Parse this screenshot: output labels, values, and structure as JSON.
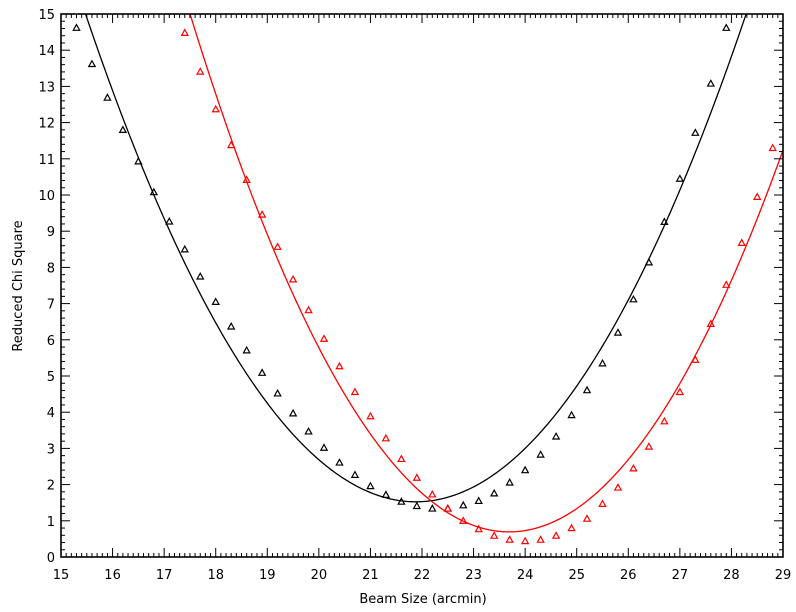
{
  "chart_data": {
    "type": "line",
    "title": "",
    "xlabel": "Beam Size (arcmin)",
    "ylabel": "Reduced Chi Square",
    "xlim": [
      15,
      29
    ],
    "ylim": [
      0,
      15
    ],
    "xticks": [
      "15",
      "16",
      "17",
      "18",
      "19",
      "20",
      "21",
      "22",
      "23",
      "24",
      "25",
      "26",
      "27",
      "28",
      "29"
    ],
    "yticks": [
      "0",
      "1",
      "2",
      "3",
      "4",
      "5",
      "6",
      "7",
      "8",
      "9",
      "10",
      "11",
      "12",
      "13",
      "14",
      "15"
    ],
    "grid": false,
    "legend": "none",
    "series": [
      {
        "color": "#000000",
        "marker": "triangle",
        "x": [
          15.3,
          15.6,
          15.9,
          16.2,
          16.5,
          16.8,
          17.1,
          17.4,
          17.7,
          18.0,
          18.3,
          18.6,
          18.9,
          19.2,
          19.5,
          19.8,
          20.1,
          20.4,
          20.7,
          21.0,
          21.3,
          21.6,
          21.9,
          22.2,
          22.5,
          22.8,
          23.1,
          23.4,
          23.7,
          24.0,
          24.3,
          24.6,
          24.9,
          25.2,
          25.5,
          25.8,
          26.1,
          26.4,
          26.7,
          27.0,
          27.3,
          27.6,
          27.9
        ],
        "y": [
          14.62,
          13.62,
          12.69,
          11.8,
          10.93,
          10.08,
          9.27,
          8.5,
          7.75,
          7.05,
          6.37,
          5.71,
          5.09,
          4.52,
          3.97,
          3.47,
          3.02,
          2.61,
          2.27,
          1.96,
          1.72,
          1.53,
          1.41,
          1.34,
          1.34,
          1.43,
          1.55,
          1.76,
          2.06,
          2.4,
          2.83,
          3.33,
          3.92,
          4.61,
          5.35,
          6.2,
          7.12,
          8.14,
          9.26,
          10.45,
          11.72,
          13.08,
          14.62
        ]
      },
      {
        "color": "#ff0000",
        "marker": "triangle",
        "x": [
          17.4,
          17.7,
          18.0,
          18.3,
          18.6,
          18.9,
          19.2,
          19.5,
          19.8,
          20.1,
          20.4,
          20.7,
          21.0,
          21.3,
          21.6,
          21.9,
          22.2,
          22.5,
          22.8,
          23.1,
          23.4,
          23.7,
          24.0,
          24.3,
          24.6,
          24.9,
          25.2,
          25.5,
          25.8,
          26.1,
          26.4,
          26.7,
          27.0,
          27.3,
          27.6,
          27.9,
          28.2,
          28.5,
          28.8
        ],
        "y": [
          14.48,
          13.41,
          12.37,
          11.38,
          10.42,
          9.46,
          8.57,
          7.67,
          6.82,
          6.03,
          5.27,
          4.56,
          3.89,
          3.28,
          2.71,
          2.19,
          1.73,
          1.34,
          1.0,
          0.77,
          0.59,
          0.48,
          0.44,
          0.48,
          0.59,
          0.8,
          1.06,
          1.47,
          1.92,
          2.45,
          3.05,
          3.75,
          4.56,
          5.45,
          6.44,
          7.52,
          8.68,
          9.95,
          11.3
        ]
      }
    ]
  }
}
